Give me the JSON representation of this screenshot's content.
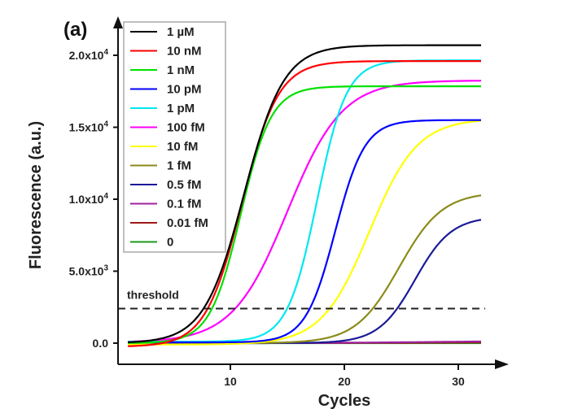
{
  "chart_data": {
    "type": "line",
    "panel_label": "(a)",
    "title": "",
    "xlabel": "Cycles",
    "ylabel": "Fluorescence (a.u.)",
    "xlim": [
      1,
      32
    ],
    "ylim": [
      -300,
      21500
    ],
    "x_ticks": [
      10,
      20,
      30
    ],
    "x_tick_labels": [
      "10",
      "20",
      "30"
    ],
    "y_ticks": [
      0,
      5000,
      10000,
      15000,
      20000
    ],
    "y_tick_labels": [
      {
        "mantissa": "0.0",
        "exp": ""
      },
      {
        "mantissa": "5.0x10",
        "exp": "3"
      },
      {
        "mantissa": "1.0x10",
        "exp": "4"
      },
      {
        "mantissa": "1.5x10",
        "exp": "4"
      },
      {
        "mantissa": "2.0x10",
        "exp": "4"
      }
    ],
    "grid": false,
    "legend_position": "top-left",
    "threshold": {
      "label": "threshold",
      "value": 2400
    },
    "x_range": [
      1,
      32
    ],
    "series": [
      {
        "name": "1 µM",
        "color": "#000000",
        "baseline": 0,
        "plateau": 20700,
        "midpoint": 11.2,
        "slope": 1.75
      },
      {
        "name": "10 nM",
        "color": "#ff0000",
        "baseline": -250,
        "plateau": 19850,
        "midpoint": 11.0,
        "slope": 1.6
      },
      {
        "name": "1 nM",
        "color": "#00e000",
        "baseline": 0,
        "plateau": 17850,
        "midpoint": 10.9,
        "slope": 1.35
      },
      {
        "name": "10 pM",
        "color": "#0000ff",
        "baseline": 50,
        "plateau": 15450,
        "midpoint": 19.2,
        "slope": 1.3
      },
      {
        "name": "1 pM",
        "color": "#00e8f0",
        "baseline": 100,
        "plateau": 19550,
        "midpoint": 17.6,
        "slope": 1.3
      },
      {
        "name": "100 fM",
        "color": "#ff00ff",
        "baseline": 50,
        "plateau": 18200,
        "midpoint": 15.0,
        "slope": 2.4
      },
      {
        "name": "10 fM",
        "color": "#ffff00",
        "baseline": -100,
        "plateau": 15700,
        "midpoint": 22.2,
        "slope": 2.1
      },
      {
        "name": "1 fM",
        "color": "#8b8b1a",
        "baseline": 0,
        "plateau": 10500,
        "midpoint": 24.8,
        "slope": 1.9
      },
      {
        "name": "0.5 fM",
        "color": "#1a1a99",
        "baseline": 0,
        "plateau": 8800,
        "midpoint": 26.2,
        "slope": 1.6
      },
      {
        "name": "0.1 fM",
        "color": "#a020a0",
        "baseline": 0,
        "plateau": 200,
        "midpoint": 30,
        "slope": 6
      },
      {
        "name": "0.01 fM",
        "color": "#a01818",
        "baseline": 0,
        "plateau": 80,
        "midpoint": 30,
        "slope": 6
      },
      {
        "name": "0",
        "color": "#1a9a1a",
        "baseline": 0,
        "plateau": 0,
        "midpoint": 30,
        "slope": 6
      }
    ]
  }
}
